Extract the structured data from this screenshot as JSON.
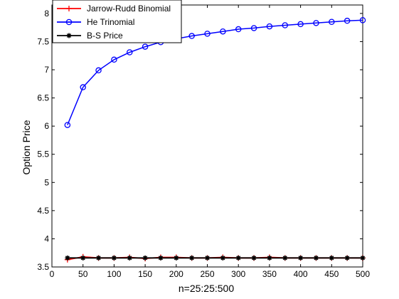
{
  "chart_data": {
    "type": "line",
    "xlabel": "n=25:25:500",
    "ylabel": "Option Price",
    "xlim": [
      0,
      500
    ],
    "ylim": [
      3.5,
      8.15
    ],
    "xticks": [
      0,
      50,
      100,
      150,
      200,
      250,
      300,
      350,
      400,
      450,
      500
    ],
    "yticks": [
      3.5,
      4,
      4.5,
      5,
      5.5,
      6,
      6.5,
      7,
      7.5,
      8
    ],
    "grid": false,
    "legend_position": "top-left",
    "x": [
      25,
      50,
      75,
      100,
      125,
      150,
      175,
      200,
      225,
      250,
      275,
      300,
      325,
      350,
      375,
      400,
      425,
      450,
      475,
      500
    ],
    "series": [
      {
        "name": "Jarrow-Rudd Binomial",
        "color": "#ff0000",
        "marker": "plus",
        "values": [
          3.63,
          3.68,
          3.66,
          3.66,
          3.67,
          3.65,
          3.67,
          3.67,
          3.66,
          3.66,
          3.67,
          3.66,
          3.66,
          3.67,
          3.66,
          3.66,
          3.66,
          3.66,
          3.66,
          3.66
        ]
      },
      {
        "name": "He Trinomial",
        "color": "#0000ff",
        "marker": "circle",
        "values": [
          6.02,
          6.69,
          6.99,
          7.18,
          7.31,
          7.41,
          7.49,
          7.55,
          7.6,
          7.64,
          7.68,
          7.72,
          7.74,
          7.77,
          7.79,
          7.81,
          7.83,
          7.85,
          7.87,
          7.88
        ]
      },
      {
        "name": "B-S Price",
        "color": "#000000",
        "marker": "star",
        "values": [
          3.66,
          3.66,
          3.66,
          3.66,
          3.66,
          3.66,
          3.66,
          3.66,
          3.66,
          3.66,
          3.66,
          3.66,
          3.66,
          3.66,
          3.66,
          3.66,
          3.66,
          3.66,
          3.66,
          3.66
        ]
      }
    ]
  }
}
